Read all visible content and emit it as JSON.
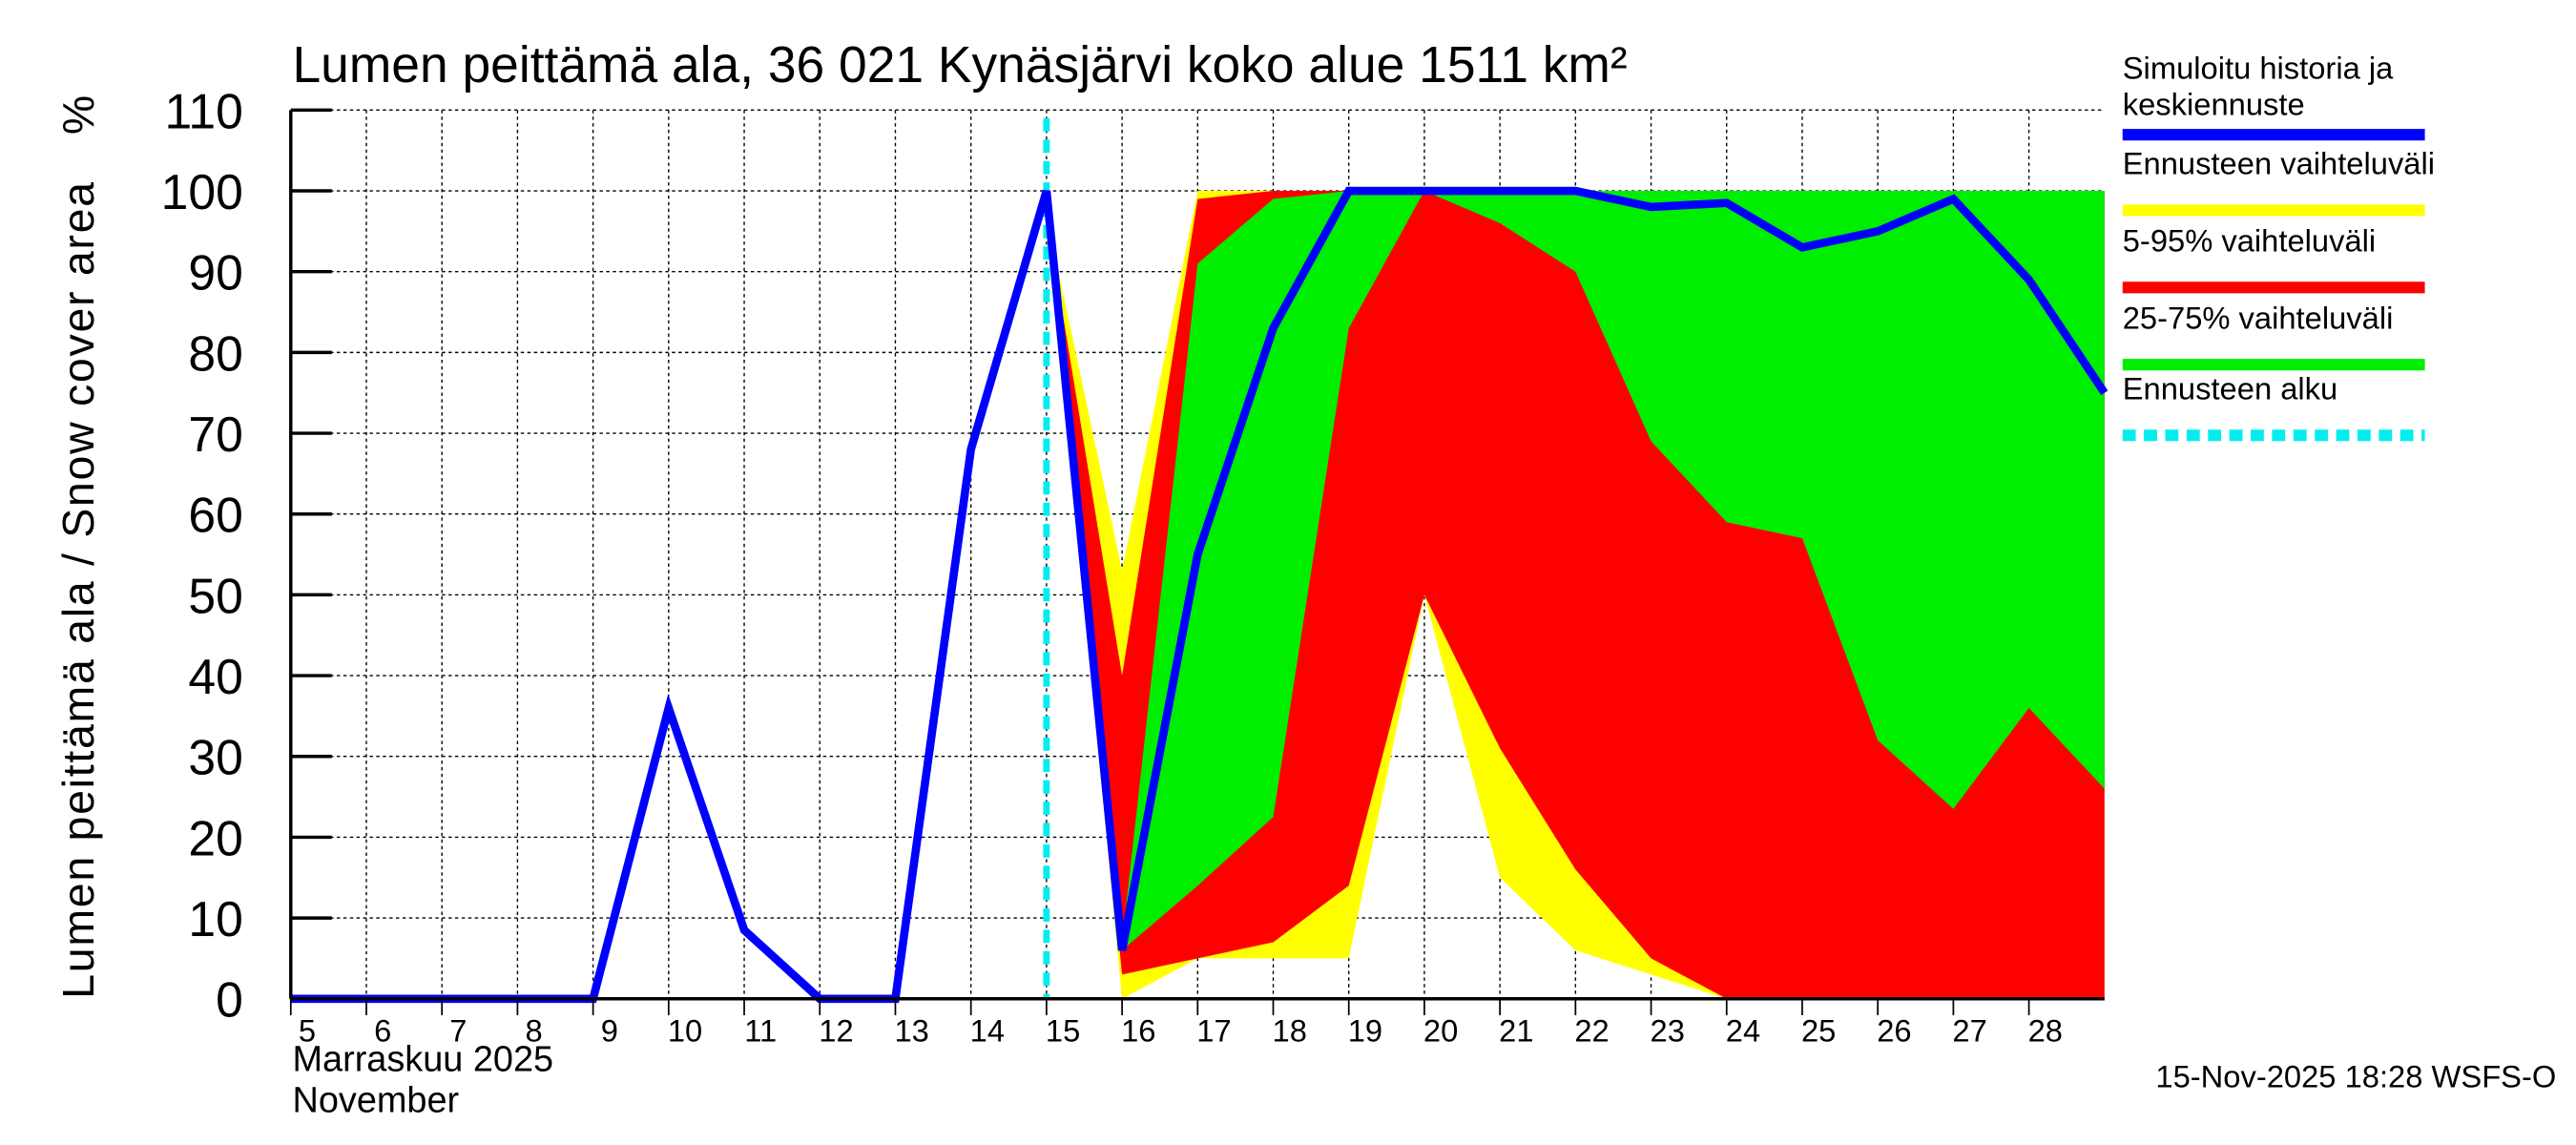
{
  "chart_data": {
    "type": "area",
    "title": "Lumen peittämä ala, 36 021 Kynäsjärvi koko alue 1511 km²",
    "ylabel": "Lumen peittämä ala / Snow cover area",
    "yunit": "%",
    "xlabel_fi": "Marraskuu 2025",
    "xlabel_en": "November",
    "ylim": [
      0,
      110
    ],
    "xlim": [
      5,
      29
    ],
    "yticks": [
      0,
      10,
      20,
      30,
      40,
      50,
      60,
      70,
      80,
      90,
      100,
      110
    ],
    "xticks": [
      5,
      6,
      7,
      8,
      9,
      10,
      11,
      12,
      13,
      14,
      15,
      16,
      17,
      18,
      19,
      20,
      21,
      22,
      23,
      24,
      25,
      26,
      27,
      28
    ],
    "grid": true,
    "legend_position": "right",
    "forecast_start": 15,
    "series": [
      {
        "name": "Ennusteen vaihteluväli",
        "color": "#ffff00",
        "kind": "band",
        "x": [
          15,
          16,
          17,
          18,
          19,
          20,
          21,
          22,
          23,
          24,
          25,
          26,
          27,
          28,
          29
        ],
        "upper": [
          97,
          53,
          100,
          100,
          100,
          100,
          100,
          100,
          100,
          100,
          100,
          100,
          100,
          100,
          100
        ],
        "lower": [
          97,
          0,
          5,
          5,
          5,
          50,
          15,
          6,
          3,
          0,
          1,
          0,
          0,
          0,
          0
        ]
      },
      {
        "name": "5-95% vaihteluväli",
        "color": "#ff0000",
        "kind": "band",
        "x": [
          15,
          16,
          17,
          18,
          19,
          20,
          21,
          22,
          23,
          24,
          25,
          26,
          27,
          28,
          29
        ],
        "upper": [
          97,
          40,
          99,
          100,
          100,
          100,
          100,
          100,
          100,
          100,
          100,
          100,
          100,
          100,
          100
        ],
        "lower": [
          97,
          3,
          5,
          7,
          14,
          50,
          31,
          16,
          5,
          0,
          0,
          0,
          0,
          0,
          0
        ]
      },
      {
        "name": "25-75% vaihteluväli",
        "color": "#00ee00",
        "kind": "band",
        "x": [
          16,
          17,
          18,
          19,
          20,
          21,
          22,
          23,
          24,
          25,
          26,
          27,
          28,
          29
        ],
        "upper": [
          7,
          91,
          99,
          100,
          100,
          100,
          100,
          100,
          100,
          100,
          100,
          100,
          100,
          100
        ],
        "lower": [
          6,
          14,
          22.5,
          83,
          100,
          96,
          90,
          69,
          59,
          57,
          32,
          23.5,
          36,
          26
        ]
      },
      {
        "name": "Simuloitu historia ja keskiennuste",
        "color": "#0000ff",
        "kind": "line",
        "x": [
          5,
          6,
          7,
          8,
          9,
          10,
          11,
          12,
          13,
          14,
          15,
          16,
          17,
          18,
          19,
          20,
          21,
          22,
          23,
          24,
          25,
          26,
          27,
          28,
          29
        ],
        "y": [
          0,
          0,
          0,
          0,
          0,
          36,
          8.5,
          0,
          0,
          68,
          100,
          6,
          55,
          83,
          100,
          100,
          100,
          100,
          98,
          98.5,
          93,
          95,
          99,
          89,
          75
        ]
      }
    ],
    "legend": [
      {
        "label": "Simuloitu historia ja keskiennuste",
        "color": "#0000ff",
        "style": "solid"
      },
      {
        "label": "Ennusteen vaihteluväli",
        "color": "#ffff00",
        "style": "solid"
      },
      {
        "label": "5-95% vaihteluväli",
        "color": "#ff0000",
        "style": "solid"
      },
      {
        "label": "25-75% vaihteluväli",
        "color": "#00ee00",
        "style": "solid"
      },
      {
        "label": "Ennusteen alku",
        "color": "#00eeee",
        "style": "dashed"
      }
    ],
    "footer": "15-Nov-2025 18:28 WSFS-O"
  }
}
